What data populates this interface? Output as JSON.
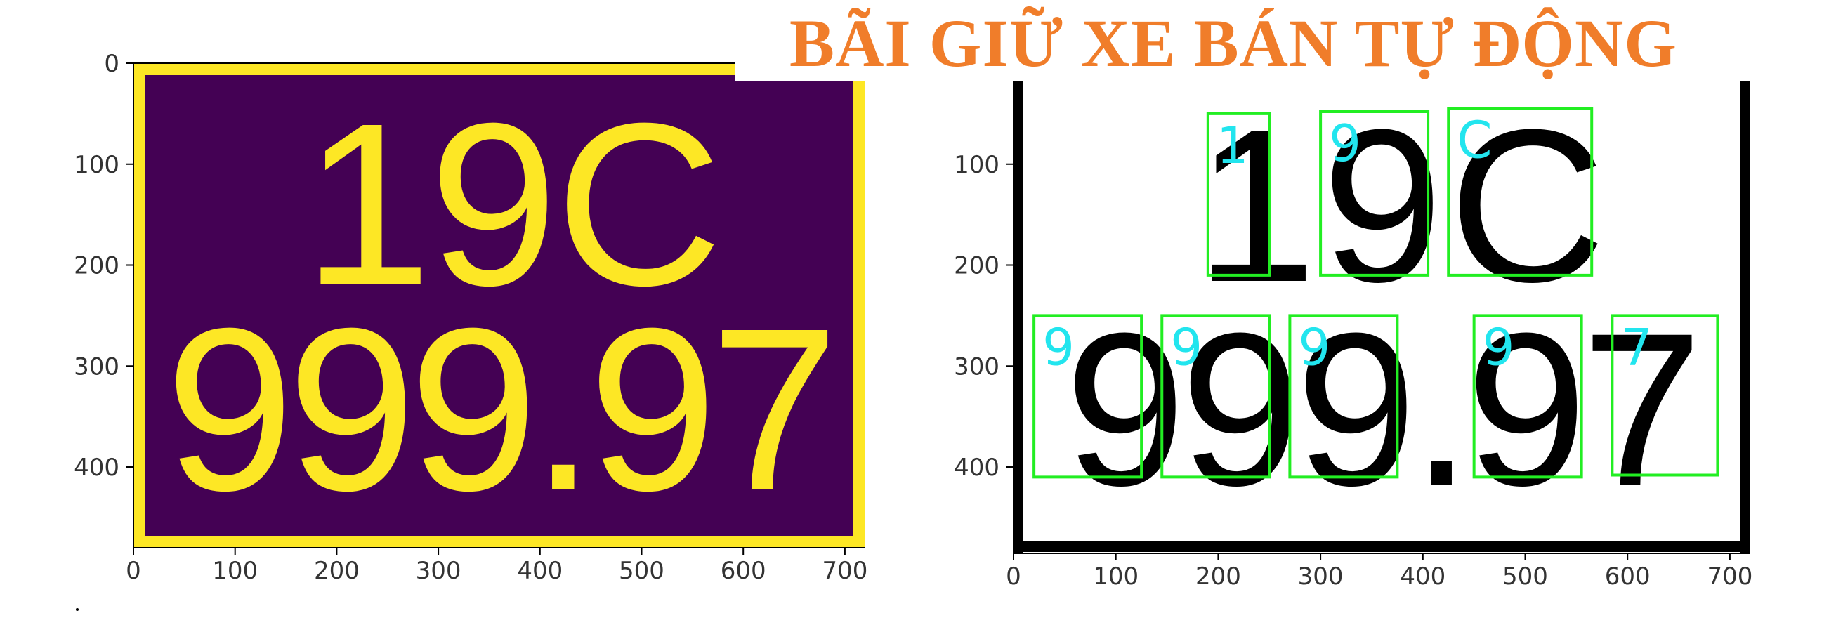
{
  "title": "BÃI GIỮ XE BÁN TỰ ĐỘNG",
  "title_color": "#f07d2a",
  "colors": {
    "plate_bg": "#440154",
    "plate_fg": "#fde725",
    "box": "#22ee22",
    "box_label": "#22e5ee",
    "binary_fg": "#000000",
    "binary_bg": "#ffffff"
  },
  "plate": {
    "line1": "19C",
    "line2": "999.97"
  },
  "left_plot": {
    "x_ticks": [
      "0",
      "100",
      "200",
      "300",
      "400",
      "500",
      "600",
      "700"
    ],
    "y_ticks": [
      "0",
      "100",
      "200",
      "300",
      "400"
    ]
  },
  "right_plot": {
    "x_ticks": [
      "0",
      "100",
      "200",
      "300",
      "400",
      "500",
      "600",
      "700"
    ],
    "y_ticks": [
      "100",
      "200",
      "300",
      "400"
    ]
  },
  "characters": [
    {
      "label": "1",
      "row": 1,
      "x0": 190,
      "x1": 250,
      "y0": 50,
      "y1": 210
    },
    {
      "label": "9",
      "row": 1,
      "x0": 300,
      "x1": 405,
      "y0": 48,
      "y1": 210
    },
    {
      "label": "C",
      "row": 1,
      "x0": 425,
      "x1": 565,
      "y0": 45,
      "y1": 210
    },
    {
      "label": "9",
      "row": 2,
      "x0": 20,
      "x1": 125,
      "y0": 250,
      "y1": 410
    },
    {
      "label": "9",
      "row": 2,
      "x0": 145,
      "x1": 250,
      "y0": 250,
      "y1": 410
    },
    {
      "label": "9",
      "row": 2,
      "x0": 270,
      "x1": 375,
      "y0": 250,
      "y1": 410
    },
    {
      "label": "9",
      "row": 2,
      "x0": 450,
      "x1": 555,
      "y0": 250,
      "y1": 410
    },
    {
      "label": "7",
      "row": 2,
      "x0": 585,
      "x1": 688,
      "y0": 250,
      "y1": 408
    }
  ]
}
